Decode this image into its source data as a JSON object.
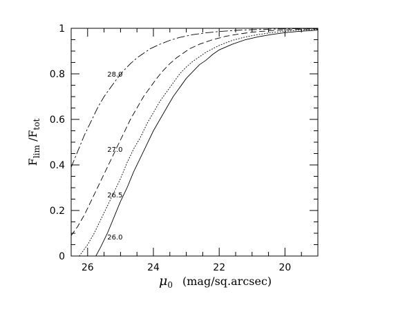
{
  "chart_data": {
    "type": "line",
    "title": "",
    "xlabel_symbol": "μ",
    "xlabel_sub": "0",
    "xlabel_units": "(mag/sq.arcsec)",
    "ylabel_main_1": "F",
    "ylabel_sub_1": "lim",
    "ylabel_sep": " /F",
    "ylabel_sub_2": "tot",
    "xlim": [
      26.5,
      19.0
    ],
    "ylim": [
      0,
      1
    ],
    "x_reversed": true,
    "x_ticks": [
      {
        "value": 26,
        "label": "26"
      },
      {
        "value": 24,
        "label": "24"
      },
      {
        "value": 22,
        "label": "22"
      },
      {
        "value": 20,
        "label": "20"
      }
    ],
    "y_ticks": [
      {
        "value": 0,
        "label": "0"
      },
      {
        "value": 0.2,
        "label": "0.2"
      },
      {
        "value": 0.4,
        "label": "0.4"
      },
      {
        "value": 0.6,
        "label": "0.6"
      },
      {
        "value": 0.8,
        "label": "0.8"
      },
      {
        "value": 1,
        "label": "1"
      }
    ],
    "grid": false,
    "series": [
      {
        "label": "26.0",
        "style": "solid",
        "label_at": [
          25.15,
          0.085
        ],
        "points": [
          [
            25.75,
            0.0
          ],
          [
            25.6,
            0.04
          ],
          [
            25.4,
            0.1
          ],
          [
            25.2,
            0.17
          ],
          [
            25.0,
            0.24
          ],
          [
            24.8,
            0.3
          ],
          [
            24.6,
            0.37
          ],
          [
            24.4,
            0.43
          ],
          [
            24.2,
            0.49
          ],
          [
            24.0,
            0.55
          ],
          [
            23.8,
            0.6
          ],
          [
            23.6,
            0.65
          ],
          [
            23.4,
            0.7
          ],
          [
            23.2,
            0.74
          ],
          [
            23.0,
            0.78
          ],
          [
            22.8,
            0.81
          ],
          [
            22.6,
            0.84
          ],
          [
            22.4,
            0.86
          ],
          [
            22.2,
            0.885
          ],
          [
            22.0,
            0.905
          ],
          [
            21.6,
            0.93
          ],
          [
            21.2,
            0.95
          ],
          [
            20.8,
            0.963
          ],
          [
            20.4,
            0.973
          ],
          [
            20.0,
            0.981
          ],
          [
            19.6,
            0.986
          ],
          [
            19.2,
            0.99
          ],
          [
            19.0,
            0.992
          ]
        ]
      },
      {
        "label": "26.5",
        "style": "dotted",
        "label_at": [
          25.15,
          0.27
        ],
        "points": [
          [
            26.25,
            0.0
          ],
          [
            26.0,
            0.05
          ],
          [
            25.8,
            0.1
          ],
          [
            25.6,
            0.16
          ],
          [
            25.4,
            0.22
          ],
          [
            25.2,
            0.28
          ],
          [
            25.0,
            0.34
          ],
          [
            24.8,
            0.41
          ],
          [
            24.6,
            0.47
          ],
          [
            24.4,
            0.52
          ],
          [
            24.2,
            0.58
          ],
          [
            24.0,
            0.63
          ],
          [
            23.8,
            0.68
          ],
          [
            23.6,
            0.72
          ],
          [
            23.4,
            0.76
          ],
          [
            23.2,
            0.8
          ],
          [
            23.0,
            0.83
          ],
          [
            22.8,
            0.855
          ],
          [
            22.6,
            0.875
          ],
          [
            22.4,
            0.895
          ],
          [
            22.2,
            0.91
          ],
          [
            22.0,
            0.925
          ],
          [
            21.6,
            0.947
          ],
          [
            21.2,
            0.962
          ],
          [
            20.8,
            0.973
          ],
          [
            20.4,
            0.981
          ],
          [
            20.0,
            0.987
          ],
          [
            19.5,
            0.992
          ],
          [
            19.0,
            0.995
          ]
        ]
      },
      {
        "label": "27.0",
        "style": "dashed",
        "label_at": [
          25.15,
          0.47
        ],
        "points": [
          [
            26.5,
            0.09
          ],
          [
            26.3,
            0.13
          ],
          [
            26.1,
            0.18
          ],
          [
            25.9,
            0.24
          ],
          [
            25.7,
            0.3
          ],
          [
            25.5,
            0.36
          ],
          [
            25.3,
            0.42
          ],
          [
            25.1,
            0.48
          ],
          [
            24.9,
            0.54
          ],
          [
            24.7,
            0.6
          ],
          [
            24.5,
            0.65
          ],
          [
            24.3,
            0.7
          ],
          [
            24.1,
            0.74
          ],
          [
            23.9,
            0.78
          ],
          [
            23.7,
            0.815
          ],
          [
            23.5,
            0.845
          ],
          [
            23.3,
            0.87
          ],
          [
            23.1,
            0.89
          ],
          [
            22.9,
            0.91
          ],
          [
            22.6,
            0.93
          ],
          [
            22.2,
            0.95
          ],
          [
            21.8,
            0.965
          ],
          [
            21.4,
            0.975
          ],
          [
            21.0,
            0.983
          ],
          [
            20.5,
            0.989
          ],
          [
            20.0,
            0.993
          ],
          [
            19.5,
            0.996
          ],
          [
            19.0,
            0.998
          ]
        ]
      },
      {
        "label": "28.0",
        "style": "dashdot",
        "label_at": [
          25.15,
          0.8
        ],
        "points": [
          [
            26.5,
            0.39
          ],
          [
            26.3,
            0.46
          ],
          [
            26.1,
            0.53
          ],
          [
            25.9,
            0.59
          ],
          [
            25.7,
            0.65
          ],
          [
            25.5,
            0.7
          ],
          [
            25.3,
            0.74
          ],
          [
            25.1,
            0.78
          ],
          [
            24.9,
            0.815
          ],
          [
            24.7,
            0.845
          ],
          [
            24.5,
            0.87
          ],
          [
            24.3,
            0.89
          ],
          [
            24.1,
            0.91
          ],
          [
            23.8,
            0.93
          ],
          [
            23.5,
            0.947
          ],
          [
            23.2,
            0.96
          ],
          [
            22.8,
            0.972
          ],
          [
            22.4,
            0.98
          ],
          [
            22.0,
            0.986
          ],
          [
            21.5,
            0.991
          ],
          [
            21.0,
            0.994
          ],
          [
            20.5,
            0.996
          ],
          [
            20.0,
            0.998
          ],
          [
            19.0,
            0.999
          ]
        ]
      }
    ]
  }
}
